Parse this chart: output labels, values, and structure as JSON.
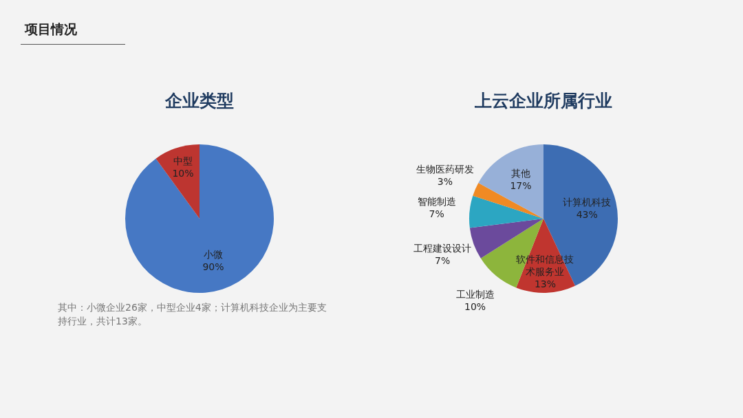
{
  "chart_data": [
    {
      "type": "pie",
      "title": "企业类型",
      "categories": [
        "小微",
        "中型"
      ],
      "values": [
        90,
        10
      ],
      "colors": [
        "#4678c4",
        "#bd3530"
      ],
      "value_labels": [
        "90%",
        "10%"
      ],
      "annotations": [
        "项目情况",
        "其中：小微企业26家，中型企业4家；计算机科技企业为主要支持行业，共计13家。"
      ]
    },
    {
      "type": "pie",
      "title": "上云企业所属行业",
      "categories": [
        "计算机科技",
        "软件和信息技术服务业",
        "工业制造",
        "工程建设设计",
        "智能制造",
        "生物医药研发",
        "其他"
      ],
      "values": [
        43,
        13,
        10,
        7,
        7,
        3,
        17
      ],
      "colors": [
        "#3d6db3",
        "#c0352f",
        "#8db53c",
        "#6b4a9c",
        "#2ca6c2",
        "#f08a24",
        "#97b0d8"
      ],
      "value_labels": [
        "43%",
        "13%",
        "10%",
        "7%",
        "7%",
        "3%",
        "17%"
      ]
    }
  ]
}
